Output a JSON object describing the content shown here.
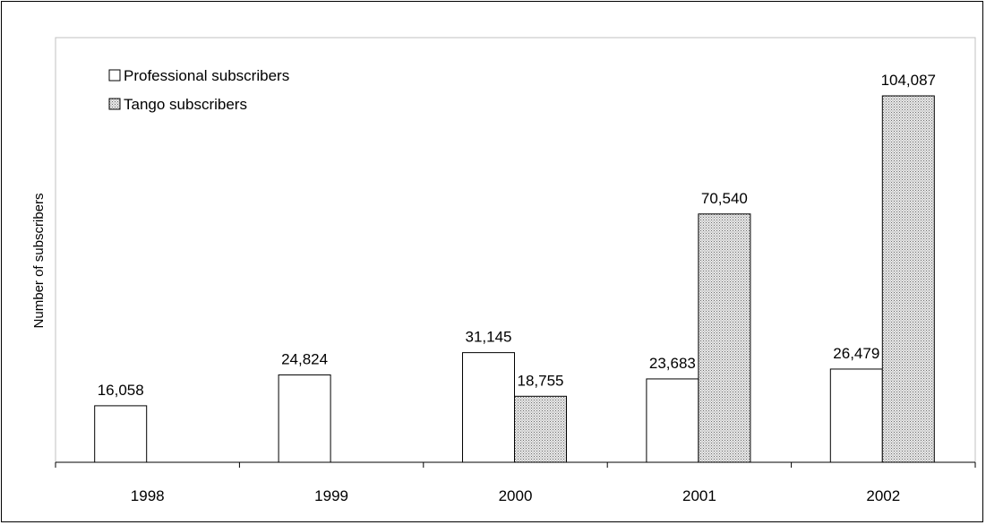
{
  "chart_data": {
    "type": "bar",
    "title": "",
    "xlabel": "",
    "ylabel": "Number of subscribers",
    "categories": [
      "1998",
      "1999",
      "2000",
      "2001",
      "2002"
    ],
    "series": [
      {
        "name": "Professional subscribers",
        "values": [
          16058,
          24824,
          31145,
          23683,
          26479
        ],
        "labels": [
          "16,058",
          "24,824",
          "31,145",
          "23,683",
          "26,479"
        ],
        "fill": "#ffffff",
        "pattern": "none"
      },
      {
        "name": "Tango subscribers",
        "values": [
          null,
          null,
          18755,
          70540,
          104087
        ],
        "labels": [
          "",
          "",
          "18,755",
          "70,540",
          "104,087"
        ],
        "fill": "#d9d9d9",
        "pattern": "dotted"
      }
    ],
    "ylim": [
      0,
      120000
    ],
    "grid": false,
    "legend_position": "top-left",
    "colors": {
      "axis": "#000000",
      "plot_border": "#c0c0c0",
      "dot": "#6e6e6e"
    }
  }
}
